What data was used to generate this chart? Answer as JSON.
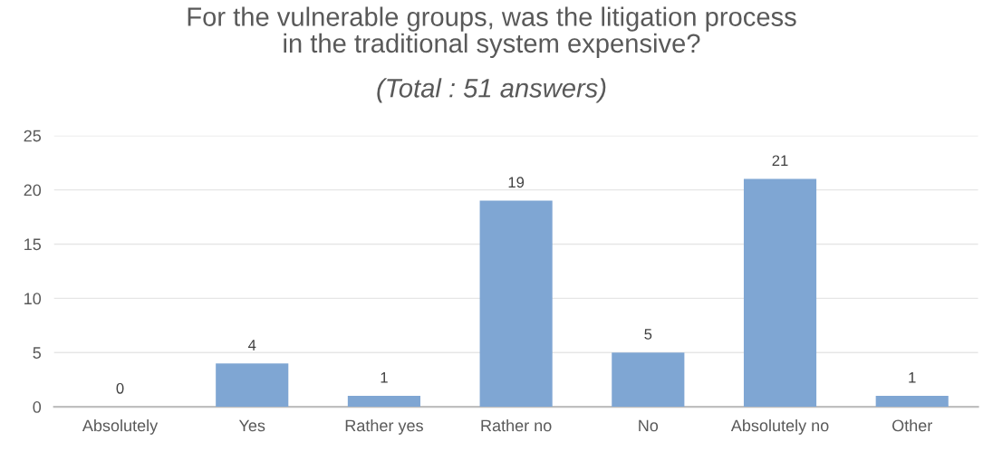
{
  "chart_data": {
    "type": "bar",
    "title": "For the vulnerable groups, was the litigation process\nin the traditional system expensive?",
    "subtitle": "(Total : 51 answers)",
    "categories": [
      "Absolutely",
      "Yes",
      "Rather yes",
      "Rather no",
      "No",
      "Absolutely no",
      "Other"
    ],
    "values": [
      0,
      4,
      1,
      19,
      5,
      21,
      1
    ],
    "color": "#7fa6d3",
    "ylim": [
      0,
      25
    ],
    "yticks": [
      0,
      5,
      10,
      15,
      20,
      25
    ],
    "grid": "y",
    "data_labels": true
  }
}
